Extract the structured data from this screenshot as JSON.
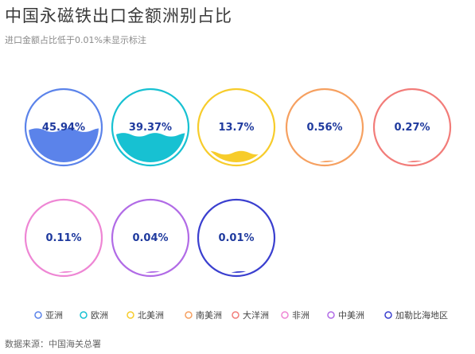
{
  "title": "中国永磁铁出口金额洲别占比",
  "subtitle": "进口金额占比低于0.01%未显示标注",
  "source": "数据来源：中国海关总署",
  "chart_data": {
    "type": "liquid-fill",
    "series": [
      {
        "name": "亚洲",
        "value": 45.94,
        "label": "45.94%",
        "color": "#5b83ea"
      },
      {
        "name": "欧洲",
        "value": 39.37,
        "label": "39.37%",
        "color": "#17c1d2"
      },
      {
        "name": "北美洲",
        "value": 13.7,
        "label": "13.7%",
        "color": "#f7cc2b"
      },
      {
        "name": "南美洲",
        "value": 0.56,
        "label": "0.56%",
        "color": "#f6a060"
      },
      {
        "name": "大洋洲",
        "value": 0.27,
        "label": "0.27%",
        "color": "#f27c79"
      },
      {
        "name": "非洲",
        "value": 0.11,
        "label": "0.11%",
        "color": "#ee86d4"
      },
      {
        "name": "中美洲",
        "value": 0.04,
        "label": "0.04%",
        "color": "#b16be6"
      },
      {
        "name": "加勒比海地区",
        "value": 0.01,
        "label": "0.01%",
        "color": "#3a3fcf"
      }
    ],
    "label_color": "#1f3a9e",
    "legend_position": "bottom"
  }
}
